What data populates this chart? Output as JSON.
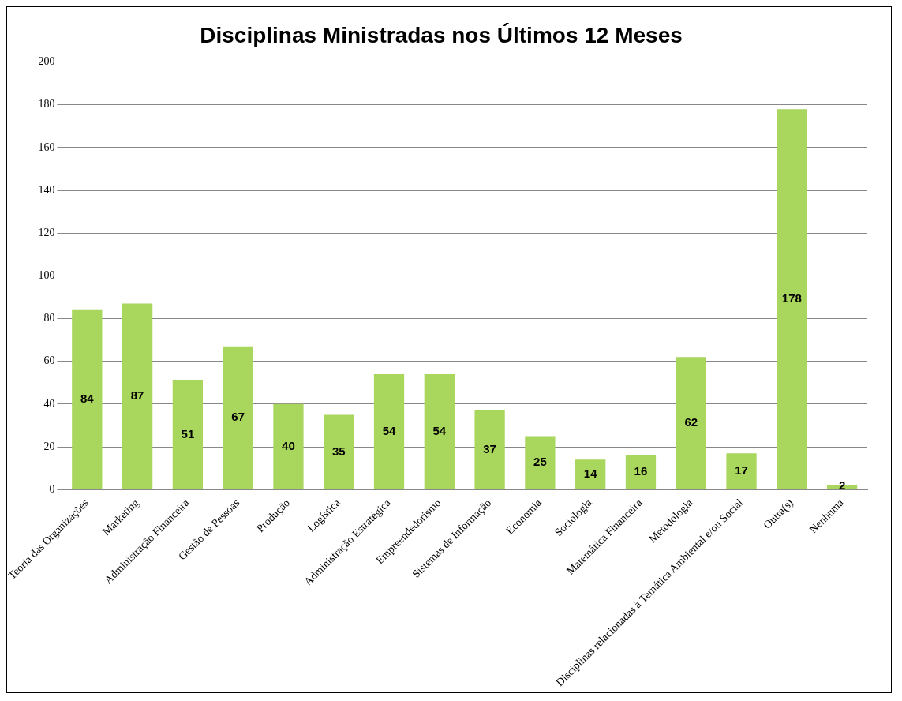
{
  "chart_data": {
    "type": "bar",
    "title": "Disciplinas Ministradas nos Últimos 12 Meses",
    "categories": [
      "Teoria das Organizações",
      "Marketing",
      "Administração Financeira",
      "Gestão de Pessoas",
      "Produção",
      "Logística",
      "Administração Estratégica",
      "Empreendedorismo",
      "Sistemas de Informação",
      "Economia",
      "Sociologia",
      "Matemática Financeira",
      "Metodologia",
      "Disciplinas relacionadas à Temática Ambiental e/ou Social",
      "Outra(s)",
      "Nenhuma"
    ],
    "values": [
      84,
      87,
      51,
      67,
      40,
      35,
      54,
      54,
      37,
      25,
      14,
      16,
      62,
      17,
      178,
      2
    ],
    "color": "#a9d65c",
    "ylim": [
      0,
      200
    ],
    "yticks": [
      0,
      20,
      40,
      60,
      80,
      100,
      120,
      140,
      160,
      180,
      200
    ],
    "grid": "y",
    "legend": false,
    "data_labels": true
  }
}
